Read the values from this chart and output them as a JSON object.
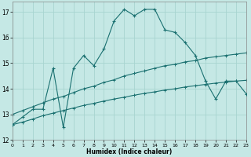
{
  "xlabel": "Humidex (Indice chaleur)",
  "background_color": "#c5e8e5",
  "grid_color": "#a8d4d0",
  "line_color": "#1a7070",
  "xlim": [
    0,
    23
  ],
  "ylim": [
    12,
    17.4
  ],
  "yticks": [
    12,
    13,
    14,
    15,
    16,
    17
  ],
  "xticks": [
    0,
    1,
    2,
    3,
    4,
    5,
    6,
    7,
    8,
    9,
    10,
    11,
    12,
    13,
    14,
    15,
    16,
    17,
    18,
    19,
    20,
    21,
    22,
    23
  ],
  "hours": [
    0,
    1,
    2,
    3,
    4,
    5,
    6,
    7,
    8,
    9,
    10,
    11,
    12,
    13,
    14,
    15,
    16,
    17,
    18,
    19,
    20,
    21,
    22,
    23
  ],
  "curve_main": [
    12.6,
    12.9,
    13.2,
    13.2,
    14.8,
    12.5,
    14.8,
    15.3,
    14.9,
    15.55,
    16.65,
    17.1,
    16.85,
    17.1,
    17.1,
    16.3,
    16.2,
    15.8,
    15.3,
    14.3,
    13.6,
    14.3,
    14.3,
    13.8
  ],
  "curve_max": [
    13.0,
    13.15,
    13.3,
    13.45,
    13.6,
    13.7,
    13.85,
    14.0,
    14.1,
    14.25,
    14.35,
    14.5,
    14.6,
    14.7,
    14.8,
    14.9,
    14.95,
    15.05,
    15.1,
    15.2,
    15.25,
    15.3,
    15.35,
    15.4
  ],
  "curve_min": [
    12.6,
    12.7,
    12.82,
    12.95,
    13.05,
    13.15,
    13.25,
    13.35,
    13.43,
    13.52,
    13.6,
    13.67,
    13.75,
    13.82,
    13.88,
    13.95,
    14.0,
    14.07,
    14.12,
    14.17,
    14.22,
    14.26,
    14.3,
    14.33
  ]
}
